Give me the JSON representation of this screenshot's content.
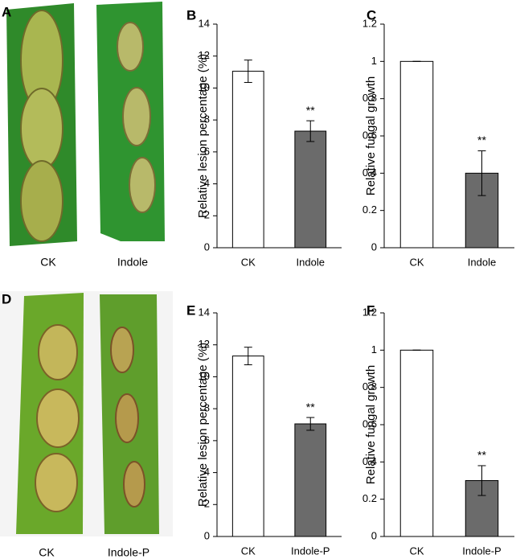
{
  "photos": [
    {
      "label": "A",
      "captions": [
        "CK",
        "Indole"
      ]
    },
    {
      "label": "D",
      "captions": [
        "CK",
        "Indole-P"
      ]
    }
  ],
  "chart_data": [
    {
      "type": "bar",
      "label": "B",
      "ylabel": "Relative lesion percentage (%)",
      "categories": [
        "CK",
        "Indole"
      ],
      "values": [
        11.05,
        7.3
      ],
      "errors": [
        0.7,
        0.65
      ],
      "colors": [
        "#ffffff",
        "#6b6b6b"
      ],
      "significance": [
        null,
        "**"
      ],
      "ylim": [
        0,
        14
      ],
      "yticks": [
        0,
        2,
        4,
        6,
        8,
        10,
        12,
        14
      ]
    },
    {
      "type": "bar",
      "label": "C",
      "ylabel": "Relative fungal growth",
      "categories": [
        "CK",
        "Indole"
      ],
      "values": [
        1,
        0.4
      ],
      "errors": [
        0,
        0.12
      ],
      "colors": [
        "#ffffff",
        "#6b6b6b"
      ],
      "significance": [
        null,
        "**"
      ],
      "ylim": [
        0,
        1.2
      ],
      "yticks": [
        0,
        0.2,
        0.4,
        0.6,
        0.8,
        1,
        1.2
      ]
    },
    {
      "type": "bar",
      "label": "E",
      "ylabel": "Relative lesion percentage (%)",
      "categories": [
        "CK",
        "Indole-P"
      ],
      "values": [
        11.3,
        7.05
      ],
      "errors": [
        0.55,
        0.4
      ],
      "colors": [
        "#ffffff",
        "#6b6b6b"
      ],
      "significance": [
        null,
        "**"
      ],
      "ylim": [
        0,
        14
      ],
      "yticks": [
        0,
        2,
        4,
        6,
        8,
        10,
        12,
        14
      ]
    },
    {
      "type": "bar",
      "label": "F",
      "ylabel": "Relative fungal growth",
      "categories": [
        "CK",
        "Indole-P"
      ],
      "values": [
        1,
        0.3
      ],
      "errors": [
        0,
        0.08
      ],
      "colors": [
        "#ffffff",
        "#6b6b6b"
      ],
      "significance": [
        null,
        "**"
      ],
      "ylim": [
        0,
        1.2
      ],
      "yticks": [
        0,
        0.2,
        0.4,
        0.6,
        0.8,
        1,
        1.2
      ]
    }
  ]
}
